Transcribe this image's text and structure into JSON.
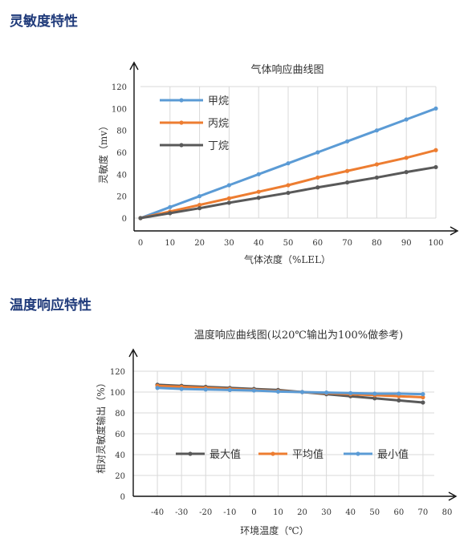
{
  "sections": [
    {
      "title": "灵敏度特性"
    },
    {
      "title": "温度响应特性"
    }
  ],
  "chart_data": [
    {
      "type": "line",
      "title": "气体响应曲线图",
      "xlabel": "气体浓度（%LEL）",
      "ylabel": "灵敏度（mv）",
      "x": [
        0,
        10,
        20,
        30,
        40,
        50,
        60,
        70,
        80,
        90,
        100
      ],
      "xlim": [
        0,
        100
      ],
      "ylim": [
        0,
        120
      ],
      "xticks": [
        0,
        10,
        20,
        30,
        40,
        50,
        60,
        70,
        80,
        90,
        100
      ],
      "yticks": [
        0,
        20,
        40,
        60,
        80,
        100,
        120
      ],
      "grid": "vertical",
      "legend": "top-left",
      "series": [
        {
          "name": "甲烷",
          "color": "#5b9bd5",
          "values": [
            0,
            10,
            20,
            30,
            40,
            50,
            60,
            70,
            80,
            90,
            100
          ]
        },
        {
          "name": "丙烷",
          "color": "#ed7d31",
          "values": [
            0,
            6,
            12,
            18,
            24,
            30,
            37,
            43,
            49,
            55,
            62
          ]
        },
        {
          "name": "丁烷",
          "color": "#595959",
          "values": [
            0,
            4.5,
            9,
            14,
            18.5,
            23,
            28,
            32.5,
            37,
            42,
            46.5
          ]
        }
      ]
    },
    {
      "type": "line",
      "title": "温度响应曲线图(以20℃输出为100%做参考)",
      "xlabel": "环境温度（℃）",
      "ylabel": "相对灵敏度输出（%）",
      "x": [
        -40,
        -30,
        -20,
        -10,
        0,
        10,
        20,
        30,
        40,
        50,
        60,
        70
      ],
      "xlim": [
        -50,
        80
      ],
      "ylim": [
        0,
        120
      ],
      "xticks": [
        -40,
        -30,
        -20,
        -10,
        0,
        10,
        20,
        30,
        40,
        50,
        60,
        70,
        80
      ],
      "yticks": [
        0,
        20,
        40,
        60,
        80,
        100,
        120
      ],
      "grid": "both",
      "legend": "center",
      "series": [
        {
          "name": "最大值",
          "color": "#595959",
          "values": [
            107,
            106,
            105,
            104,
            103,
            102,
            100,
            98,
            96,
            94,
            92,
            90
          ]
        },
        {
          "name": "平均值",
          "color": "#ed7d31",
          "values": [
            106,
            105,
            104,
            103,
            102,
            101,
            100,
            99,
            98,
            97,
            96,
            95
          ]
        },
        {
          "name": "最小值",
          "color": "#5b9bd5",
          "values": [
            104,
            103,
            102.5,
            102,
            101.5,
            100.5,
            100,
            99.5,
            99,
            98.5,
            98.5,
            98
          ]
        }
      ]
    }
  ]
}
